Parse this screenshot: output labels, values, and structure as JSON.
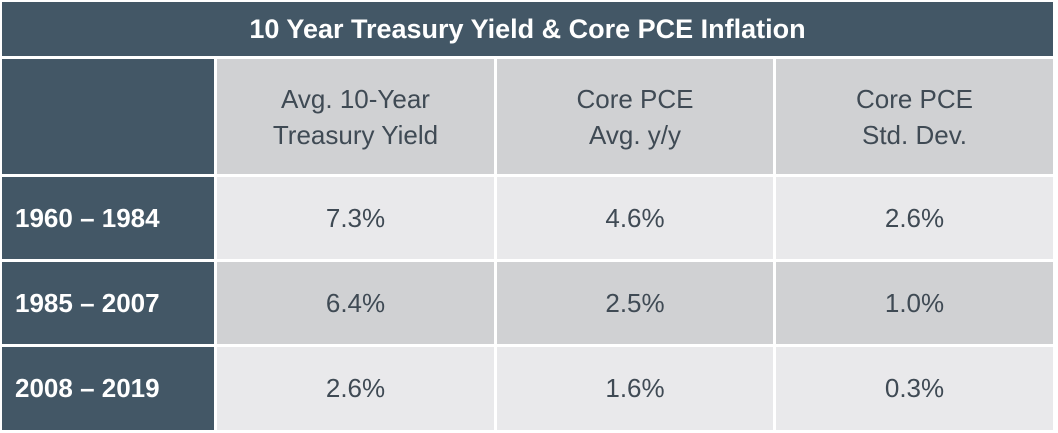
{
  "table": {
    "title": "10 Year Treasury Yield & Core PCE Inflation",
    "columns": [
      {
        "line1": "Avg. 10-Year",
        "line2": "Treasury Yield"
      },
      {
        "line1": "Core PCE",
        "line2": "Avg. y/y"
      },
      {
        "line1": "Core PCE",
        "line2": "Std. Dev."
      }
    ],
    "rows": [
      {
        "label": "1960 – 1984",
        "values": [
          "7.3%",
          "4.6%",
          "2.6%"
        ]
      },
      {
        "label": "1985 – 2007",
        "values": [
          "6.4%",
          "2.5%",
          "1.0%"
        ]
      },
      {
        "label": "2008 – 2019",
        "values": [
          "2.6%",
          "1.6%",
          "0.3%"
        ]
      }
    ]
  },
  "colors": {
    "header_bg": "#435766",
    "column_header_bg": "#d0d1d3",
    "row_light_bg": "#e9e9eb",
    "row_dark_bg": "#d0d1d3",
    "text": "#3f4a54"
  }
}
